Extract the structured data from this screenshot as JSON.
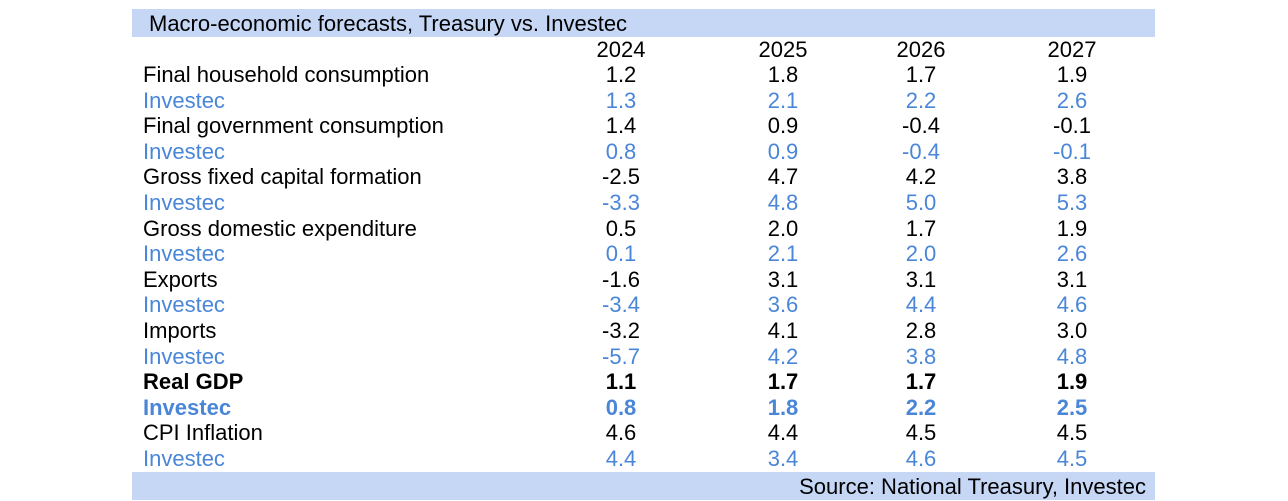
{
  "title": "Macro-economic forecasts, Treasury vs. Investec",
  "years": [
    "2024",
    "2025",
    "2026",
    "2027"
  ],
  "rows": [
    {
      "label": "Final household consumption",
      "values": [
        "1.2",
        "1.8",
        "1.7",
        "1.9"
      ],
      "style": "black"
    },
    {
      "label": "Investec",
      "values": [
        "1.3",
        "2.1",
        "2.2",
        "2.6"
      ],
      "style": "blue"
    },
    {
      "label": "Final government consumption",
      "values": [
        "1.4",
        "0.9",
        "-0.4",
        "-0.1"
      ],
      "style": "black"
    },
    {
      "label": "Investec",
      "values": [
        "0.8",
        "0.9",
        "-0.4",
        "-0.1"
      ],
      "style": "blue"
    },
    {
      "label": "Gross fixed capital formation",
      "values": [
        "-2.5",
        "4.7",
        "4.2",
        "3.8"
      ],
      "style": "black"
    },
    {
      "label": "Investec",
      "values": [
        "-3.3",
        "4.8",
        "5.0",
        "5.3"
      ],
      "style": "blue"
    },
    {
      "label": "Gross domestic expenditure",
      "values": [
        "0.5",
        "2.0",
        "1.7",
        "1.9"
      ],
      "style": "black"
    },
    {
      "label": "Investec",
      "values": [
        "0.1",
        "2.1",
        "2.0",
        "2.6"
      ],
      "style": "blue"
    },
    {
      "label": "Exports",
      "values": [
        "-1.6",
        "3.1",
        "3.1",
        "3.1"
      ],
      "style": "black"
    },
    {
      "label": "Investec",
      "values": [
        "-3.4",
        "3.6",
        "4.4",
        "4.6"
      ],
      "style": "blue"
    },
    {
      "label": "Imports",
      "values": [
        "-3.2",
        "4.1",
        "2.8",
        "3.0"
      ],
      "style": "black"
    },
    {
      "label": "Investec",
      "values": [
        "-5.7",
        "4.2",
        "3.8",
        "4.8"
      ],
      "style": "blue"
    },
    {
      "label": "Real GDP",
      "values": [
        "1.1",
        "1.7",
        "1.7",
        "1.9"
      ],
      "style": "black-bold"
    },
    {
      "label": "Investec",
      "values": [
        "0.8",
        "1.8",
        "2.2",
        "2.5"
      ],
      "style": "blue-bold"
    },
    {
      "label": "CPI Inflation",
      "values": [
        "4.6",
        "4.4",
        "4.5",
        "4.5"
      ],
      "style": "black"
    },
    {
      "label": "Investec",
      "values": [
        "4.4",
        "3.4",
        "4.6",
        "4.5"
      ],
      "style": "blue"
    }
  ],
  "source": "Source: National Treasury, Investec",
  "colors": {
    "investec_blue": "#4a86d8",
    "band": "#c6d6f5"
  }
}
